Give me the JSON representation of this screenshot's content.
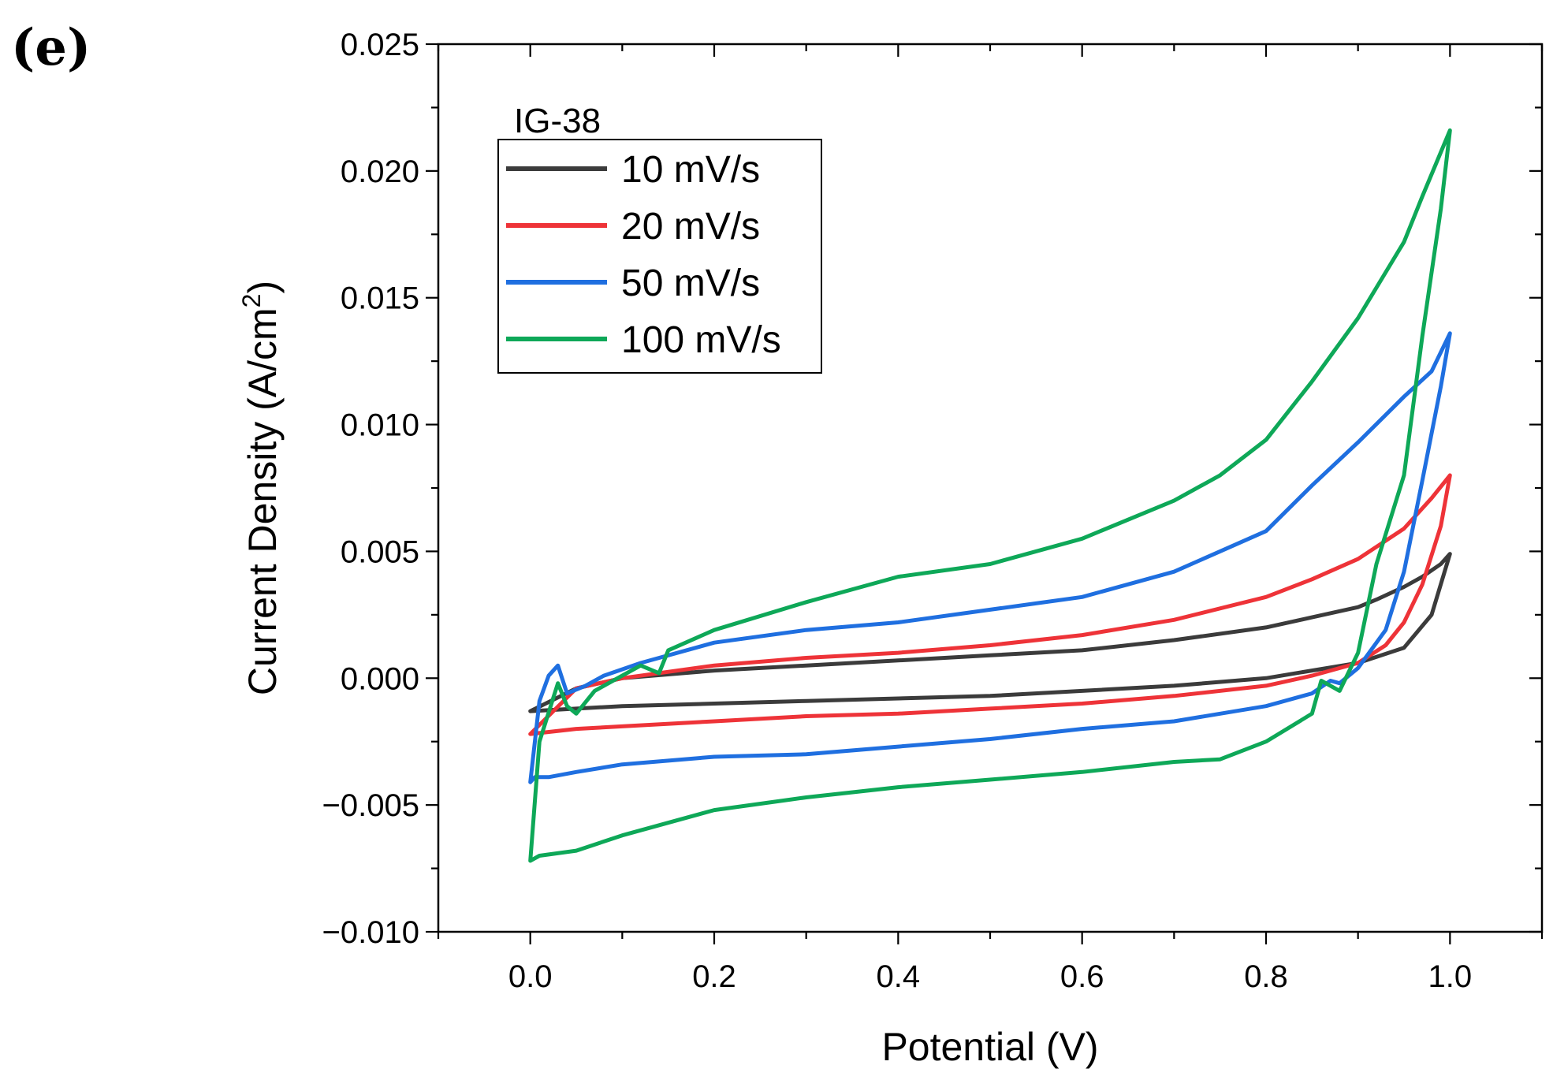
{
  "chart_data": {
    "type": "line",
    "panel_label": "(e)",
    "title": "",
    "xlabel": "Potential (V)",
    "ylabel": "Current Density (A/cm",
    "ylabel_sup": "2",
    "ylabel_close": ")",
    "xlim": [
      -0.1,
      1.1
    ],
    "ylim": [
      -0.01,
      0.025
    ],
    "x_ticks": [
      0.0,
      0.2,
      0.4,
      0.6,
      0.8,
      1.0
    ],
    "x_tick_labels": [
      "0.0",
      "0.2",
      "0.4",
      "0.6",
      "0.8",
      "1.0"
    ],
    "y_ticks": [
      -0.01,
      -0.005,
      0.0,
      0.005,
      0.01,
      0.015,
      0.02,
      0.025
    ],
    "y_tick_labels": [
      "−0.010",
      "−0.005",
      "0.000",
      "0.005",
      "0.010",
      "0.015",
      "0.020",
      "0.025"
    ],
    "legend_title": "IG-38",
    "legend_position": "top-left",
    "series": [
      {
        "name": "10 mV/s",
        "color": "#3b3b3b",
        "x": [
          0.0,
          0.05,
          0.1,
          0.2,
          0.3,
          0.4,
          0.5,
          0.6,
          0.7,
          0.8,
          0.85,
          0.9,
          0.95,
          0.98,
          1.0,
          0.99,
          0.97,
          0.95,
          0.92,
          0.9,
          0.85,
          0.8,
          0.7,
          0.6,
          0.5,
          0.4,
          0.3,
          0.2,
          0.1,
          0.05,
          0.0
        ],
        "y": [
          -0.0013,
          -0.0012,
          -0.0011,
          -0.001,
          -0.0009,
          -0.0008,
          -0.0007,
          -0.0005,
          -0.0003,
          0.0,
          0.0003,
          0.0006,
          0.0012,
          0.0025,
          0.0049,
          0.0045,
          0.004,
          0.0036,
          0.0031,
          0.0028,
          0.0024,
          0.002,
          0.0015,
          0.0011,
          0.0009,
          0.0007,
          0.0005,
          0.0003,
          0.0,
          -0.0004,
          -0.0013
        ]
      },
      {
        "name": "20 mV/s",
        "color": "#ee3338",
        "x": [
          0.0,
          0.05,
          0.1,
          0.2,
          0.3,
          0.4,
          0.5,
          0.6,
          0.7,
          0.8,
          0.85,
          0.9,
          0.93,
          0.95,
          0.97,
          0.99,
          1.0,
          0.98,
          0.95,
          0.9,
          0.85,
          0.8,
          0.7,
          0.6,
          0.5,
          0.4,
          0.3,
          0.2,
          0.1,
          0.05,
          0.0
        ],
        "y": [
          -0.0022,
          -0.002,
          -0.0019,
          -0.0017,
          -0.0015,
          -0.0014,
          -0.0012,
          -0.001,
          -0.0007,
          -0.0003,
          0.0001,
          0.0006,
          0.0013,
          0.0022,
          0.0037,
          0.006,
          0.008,
          0.0071,
          0.0059,
          0.0047,
          0.0039,
          0.0032,
          0.0023,
          0.0017,
          0.0013,
          0.001,
          0.0008,
          0.0005,
          0.0,
          -0.0004,
          -0.0022
        ]
      },
      {
        "name": "50 mV/s",
        "color": "#1f6fe0",
        "x": [
          0.0,
          0.005,
          0.02,
          0.05,
          0.1,
          0.2,
          0.3,
          0.4,
          0.5,
          0.6,
          0.7,
          0.8,
          0.85,
          0.87,
          0.88,
          0.9,
          0.93,
          0.95,
          0.97,
          0.99,
          1.0,
          0.98,
          0.95,
          0.9,
          0.85,
          0.8,
          0.75,
          0.7,
          0.6,
          0.5,
          0.4,
          0.3,
          0.2,
          0.12,
          0.08,
          0.06,
          0.04,
          0.03,
          0.02,
          0.01,
          0.0
        ],
        "y": [
          -0.0041,
          -0.0039,
          -0.0039,
          -0.0037,
          -0.0034,
          -0.0031,
          -0.003,
          -0.0027,
          -0.0024,
          -0.002,
          -0.0017,
          -0.0011,
          -0.0006,
          -0.0001,
          -0.0002,
          0.0004,
          0.0019,
          0.0042,
          0.0078,
          0.0115,
          0.0136,
          0.0121,
          0.0111,
          0.0093,
          0.0076,
          0.0058,
          0.005,
          0.0042,
          0.0032,
          0.0027,
          0.0022,
          0.0019,
          0.0014,
          0.0006,
          0.0001,
          -0.0003,
          -0.0006,
          0.0005,
          0.0001,
          -0.0009,
          -0.0041
        ]
      },
      {
        "name": "100 mV/s",
        "color": "#0ea858",
        "x": [
          0.0,
          0.01,
          0.05,
          0.1,
          0.2,
          0.3,
          0.4,
          0.5,
          0.6,
          0.7,
          0.75,
          0.8,
          0.85,
          0.86,
          0.87,
          0.88,
          0.9,
          0.92,
          0.95,
          0.97,
          0.99,
          1.0,
          0.97,
          0.95,
          0.9,
          0.85,
          0.8,
          0.75,
          0.7,
          0.6,
          0.5,
          0.4,
          0.3,
          0.2,
          0.15,
          0.14,
          0.12,
          0.1,
          0.07,
          0.05,
          0.04,
          0.03,
          0.01,
          0.0
        ],
        "y": [
          -0.0072,
          -0.007,
          -0.0068,
          -0.0062,
          -0.0052,
          -0.0047,
          -0.0043,
          -0.004,
          -0.0037,
          -0.0033,
          -0.0032,
          -0.0025,
          -0.0014,
          -0.0001,
          -0.0003,
          -0.0005,
          0.001,
          0.0045,
          0.008,
          0.0135,
          0.0185,
          0.0216,
          0.019,
          0.0172,
          0.0142,
          0.0117,
          0.0094,
          0.008,
          0.007,
          0.0055,
          0.0045,
          0.004,
          0.003,
          0.0019,
          0.0011,
          0.0002,
          0.0005,
          0.0001,
          -0.0005,
          -0.0014,
          -0.0011,
          -0.0002,
          -0.0025,
          -0.0072
        ]
      }
    ]
  }
}
